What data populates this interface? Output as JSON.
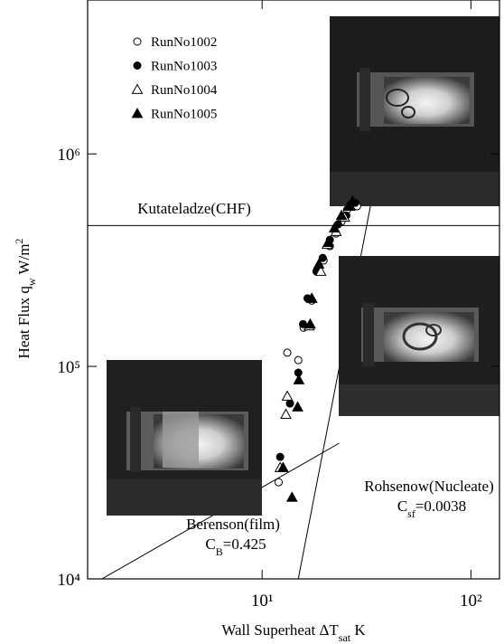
{
  "chart_data": {
    "type": "scatter",
    "xlabel": [
      {
        "text": "Wall Superheat ΔT"
      },
      {
        "text": "sat",
        "baseline": "sub"
      },
      {
        "text": "  K"
      }
    ],
    "ylabel": [
      {
        "text": "Heat Flux q"
      },
      {
        "text": "w",
        "baseline": "sub"
      },
      {
        "text": "  W/m"
      },
      {
        "text": "2",
        "baseline": "super"
      }
    ],
    "log_x": true,
    "log_y": true,
    "xlim": [
      1.46,
      137
    ],
    "ylim": [
      10000,
      5300000
    ],
    "xticks": [
      {
        "value": 10,
        "label": "10¹"
      },
      {
        "value": 100,
        "label": "10²"
      }
    ],
    "yticks": [
      {
        "value": 10000,
        "label": "10⁴"
      },
      {
        "value": 100000,
        "label": "10⁵"
      },
      {
        "value": 1000000,
        "label": "10⁶"
      }
    ],
    "legend": "upper left",
    "series": [
      {
        "name": "RunNo1002",
        "marker": "circle",
        "fill": "open",
        "color": "#000000",
        "x": [
          12.0,
          14.9,
          13.2,
          17.3,
          15.8,
          18.6,
          19.7,
          21.1,
          22.6,
          24.0,
          25.5,
          28.5
        ],
        "values": [
          28500,
          107000,
          116000,
          204000,
          152000,
          280000,
          315000,
          368000,
          422000,
          480000,
          545000,
          567000
        ]
      },
      {
        "name": "RunNo1003",
        "marker": "circle",
        "fill": "filled",
        "color": "#000000",
        "x": [
          12.2,
          13.6,
          14.9,
          15.7,
          16.5,
          18.2,
          19.5,
          21.1,
          23.1,
          25.3,
          27.9
        ],
        "values": [
          37500,
          66900,
          93400,
          158000,
          209000,
          280000,
          324000,
          394000,
          466000,
          513000,
          589000
        ]
      },
      {
        "name": "RunNo1004",
        "marker": "triangle",
        "fill": "open",
        "color": "#000000",
        "x": [
          12.2,
          13.0,
          13.2,
          16.8,
          17.3,
          19.1,
          20.5,
          22.6,
          24.8,
          26.3
        ],
        "values": [
          33400,
          59500,
          72400,
          155000,
          209000,
          280000,
          375000,
          431000,
          504000,
          567000
        ]
      },
      {
        "name": "RunNo1005",
        "marker": "triangle",
        "fill": "filled",
        "color": "#000000",
        "x": [
          12.6,
          14.8,
          15.0,
          17.0,
          17.3,
          18.7,
          20.7,
          22.2,
          24.0,
          26.0,
          27.1,
          13.9
        ],
        "values": [
          33400,
          64400,
          86400,
          158000,
          209000,
          303000,
          383000,
          448000,
          513000,
          567000,
          600000,
          24200
        ]
      }
    ],
    "reference_lines": [
      {
        "label": [
          {
            "text": "Kutateladze(CHF)"
          }
        ],
        "x": [
          1.46,
          137
        ],
        "y": [
          460000,
          460000
        ]
      },
      {
        "label": [
          {
            "text": "Berenson(film)"
          }
        ],
        "note": [
          {
            "text": "C"
          },
          {
            "text": "B",
            "baseline": "sub"
          },
          {
            "text": "=0.425"
          }
        ],
        "x": [
          1.71,
          23.4
        ],
        "y": [
          10000,
          43500
        ]
      },
      {
        "label": [
          {
            "text": "Rohsenow(Nucleate)"
          }
        ],
        "note": [
          {
            "text": "C"
          },
          {
            "text": "sf",
            "baseline": "sub"
          },
          {
            "text": "=0.0038"
          }
        ],
        "x": [
          14.9,
          38.4
        ],
        "y": [
          10000,
          1220000
        ]
      }
    ]
  }
}
